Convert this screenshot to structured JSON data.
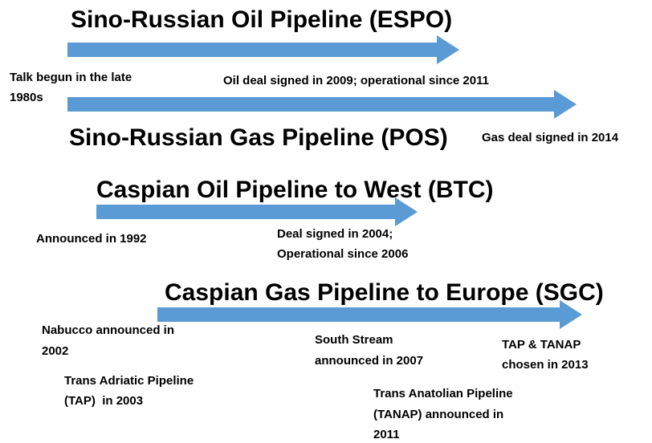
{
  "pipelines": [
    {
      "title": "Sino-Russian Oil Pipeline (ESPO)",
      "notes": [
        {
          "lines": [
            "Talk begun in the late",
            "1980s"
          ]
        },
        {
          "lines": [
            "Oil deal signed in 2009; operational since 2011"
          ]
        }
      ]
    },
    {
      "title": "Sino-Russian Gas Pipeline (POS)",
      "notes": [
        {
          "lines": [
            "Gas deal signed in 2014"
          ]
        }
      ]
    },
    {
      "title": "Caspian Oil Pipeline to West (BTC)",
      "notes": [
        {
          "lines": [
            "Announced in 1992"
          ]
        },
        {
          "lines": [
            "Deal signed in 2004;",
            "Operational since 2006"
          ]
        }
      ]
    },
    {
      "title": "Caspian Gas Pipeline to Europe (SGC)",
      "notes": [
        {
          "lines": [
            "Nabucco announced in",
            "2002"
          ]
        },
        {
          "lines": [
            "Trans Adriatic Pipeline",
            "(TAP)  in 2003"
          ]
        },
        {
          "lines": [
            "South Stream",
            "announced in 2007"
          ]
        },
        {
          "lines": [
            "TAP & TANAP",
            "chosen in 2013"
          ]
        },
        {
          "lines": [
            "Trans Anatolian Pipeline",
            "(TANAP) announced in",
            "2011"
          ]
        }
      ]
    }
  ]
}
